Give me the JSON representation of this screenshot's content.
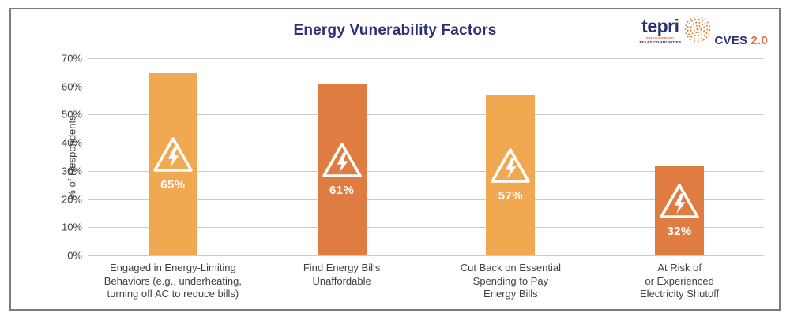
{
  "title": "Energy Vunerability Factors",
  "logo": {
    "brand": "tepri",
    "tagline_line1": "EMPOWERING",
    "tagline_line2": "TEXAS COMMUNITIES",
    "product": "CVES",
    "version": "2.0"
  },
  "chart_data": {
    "type": "bar",
    "title": "Energy Vunerability Factors",
    "ylabel": "% of Respondents",
    "xlabel": "",
    "ylim": [
      0,
      70
    ],
    "yticks": [
      "70%",
      "60%",
      "50%",
      "40%",
      "30%",
      "20%",
      "10%",
      "0%"
    ],
    "grid": true,
    "categories": [
      "Engaged in Energy-Limiting\nBehaviors (e.g., underheating,\nturning off AC to reduce bills)",
      "Find Energy Bills\nUnaffordable",
      "Cut Back on Essential\nSpending to Pay\nEnergy Bills",
      "At Risk of\nor Experienced\nElectricity Shutoff"
    ],
    "values": [
      65,
      61,
      57,
      32
    ],
    "value_labels": [
      "65%",
      "61%",
      "57%",
      "32%"
    ],
    "bar_colors": [
      "#f0a851",
      "#df7c42",
      "#f0a851",
      "#df7c42"
    ],
    "bar_icon": "warning-lightning-triangle-icon",
    "legend": null
  },
  "colors": {
    "title_navy": "#2d2f76",
    "orange_light": "#f0a851",
    "orange_dark": "#df7c42",
    "gridline": "#cbcbcb",
    "tick_text": "#414042",
    "card_border": "#7c7c7d",
    "logo_orange": "#e8703a",
    "value_text": "#ffffff"
  }
}
